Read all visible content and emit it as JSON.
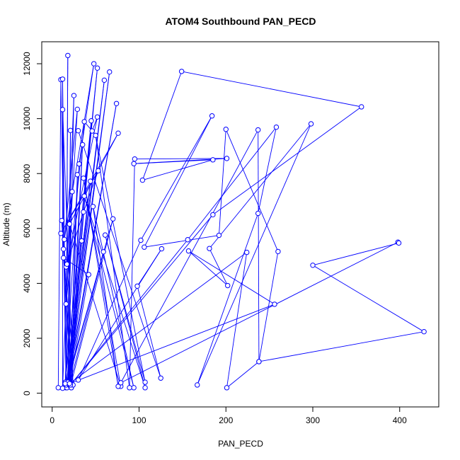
{
  "chart_data": {
    "type": "line",
    "title": "ATOM4 Southbound PAN_PECD",
    "xlabel": "PAN_PECD",
    "ylabel": "Altitude (m)",
    "xlim": [
      -12,
      445
    ],
    "ylim": [
      -500,
      12800
    ],
    "xticks": [
      0,
      100,
      200,
      300,
      400
    ],
    "yticks": [
      0,
      2000,
      4000,
      6000,
      8000,
      10000,
      12000
    ],
    "grid": false,
    "legend": "none",
    "series_color": "#0000ff",
    "markers": "open-circle",
    "series": [
      {
        "points": [
          [
            7,
            200
          ],
          [
            10,
            11420
          ],
          [
            16,
            200
          ],
          [
            18,
            12300
          ],
          [
            16,
            250
          ],
          [
            12,
            11440
          ],
          [
            12,
            180
          ],
          [
            25,
            10840
          ],
          [
            18,
            260
          ],
          [
            21,
            9570
          ],
          [
            20,
            300
          ],
          [
            35,
            9050
          ],
          [
            22,
            200
          ],
          [
            29,
            7960
          ],
          [
            20,
            250
          ],
          [
            45,
            9920
          ],
          [
            15,
            400
          ],
          [
            52,
            11840
          ],
          [
            17,
            300
          ],
          [
            60,
            11400
          ],
          [
            19,
            250
          ],
          [
            66,
            11700
          ],
          [
            17,
            200
          ],
          [
            74,
            10550
          ],
          [
            19,
            350
          ],
          [
            44,
            7720
          ],
          [
            16,
            300
          ],
          [
            70,
            6350
          ],
          [
            21,
            250
          ],
          [
            34,
            5550
          ],
          [
            18,
            400
          ],
          [
            59,
            5150
          ],
          [
            20,
            300
          ],
          [
            42,
            4320
          ],
          [
            13,
            4930
          ],
          [
            22,
            200
          ],
          [
            11,
            6290
          ],
          [
            24,
            300
          ],
          [
            12,
            10330
          ],
          [
            13,
            5250
          ],
          [
            16,
            4600
          ],
          [
            23,
            7340
          ],
          [
            15,
            350
          ],
          [
            31,
            8350
          ],
          [
            48,
            12000
          ],
          [
            14,
            5600
          ],
          [
            29,
            10340
          ],
          [
            16,
            3250
          ],
          [
            37,
            9890
          ],
          [
            46,
            9550
          ],
          [
            52,
            10060
          ],
          [
            17,
            4700
          ],
          [
            36,
            6600
          ],
          [
            53,
            8100
          ],
          [
            10,
            5820
          ],
          [
            76,
            9470
          ],
          [
            20,
            6160
          ],
          [
            79,
            250
          ],
          [
            36,
            7830
          ],
          [
            76,
            250
          ],
          [
            47,
            6800
          ],
          [
            94,
            200
          ],
          [
            37,
            7180
          ],
          [
            107,
            200
          ],
          [
            61,
            5760
          ],
          [
            107,
            400
          ],
          [
            50,
            9390
          ],
          [
            89,
            200
          ],
          [
            95,
            8530
          ],
          [
            201,
            8550
          ],
          [
            94,
            8360
          ],
          [
            185,
            8500
          ],
          [
            104,
            7760
          ],
          [
            149,
            11720
          ],
          [
            356,
            10430
          ],
          [
            185,
            6500
          ],
          [
            21,
            300
          ],
          [
            156,
            5590
          ],
          [
            258,
            9690
          ],
          [
            237,
            6550
          ],
          [
            167,
            300
          ],
          [
            298,
            9810
          ],
          [
            181,
            5270
          ],
          [
            202,
            3920
          ],
          [
            157,
            5180
          ],
          [
            256,
            3240
          ],
          [
            20,
            350
          ],
          [
            224,
            5130
          ],
          [
            201,
            200
          ],
          [
            238,
            1150
          ],
          [
            237,
            9590
          ],
          [
            79,
            380
          ],
          [
            398,
            5500
          ],
          [
            399,
            5470
          ],
          [
            300,
            4660
          ],
          [
            428,
            2240
          ],
          [
            238,
            1150
          ],
          [
            260,
            5160
          ],
          [
            200,
            9610
          ],
          [
            192,
            5750
          ],
          [
            106,
            5320
          ],
          [
            184,
            10100
          ],
          [
            102,
            5570
          ],
          [
            30,
            480
          ],
          [
            126,
            5260
          ],
          [
            98,
            3900
          ],
          [
            125,
            550
          ],
          [
            30,
            9560
          ]
        ]
      }
    ]
  }
}
